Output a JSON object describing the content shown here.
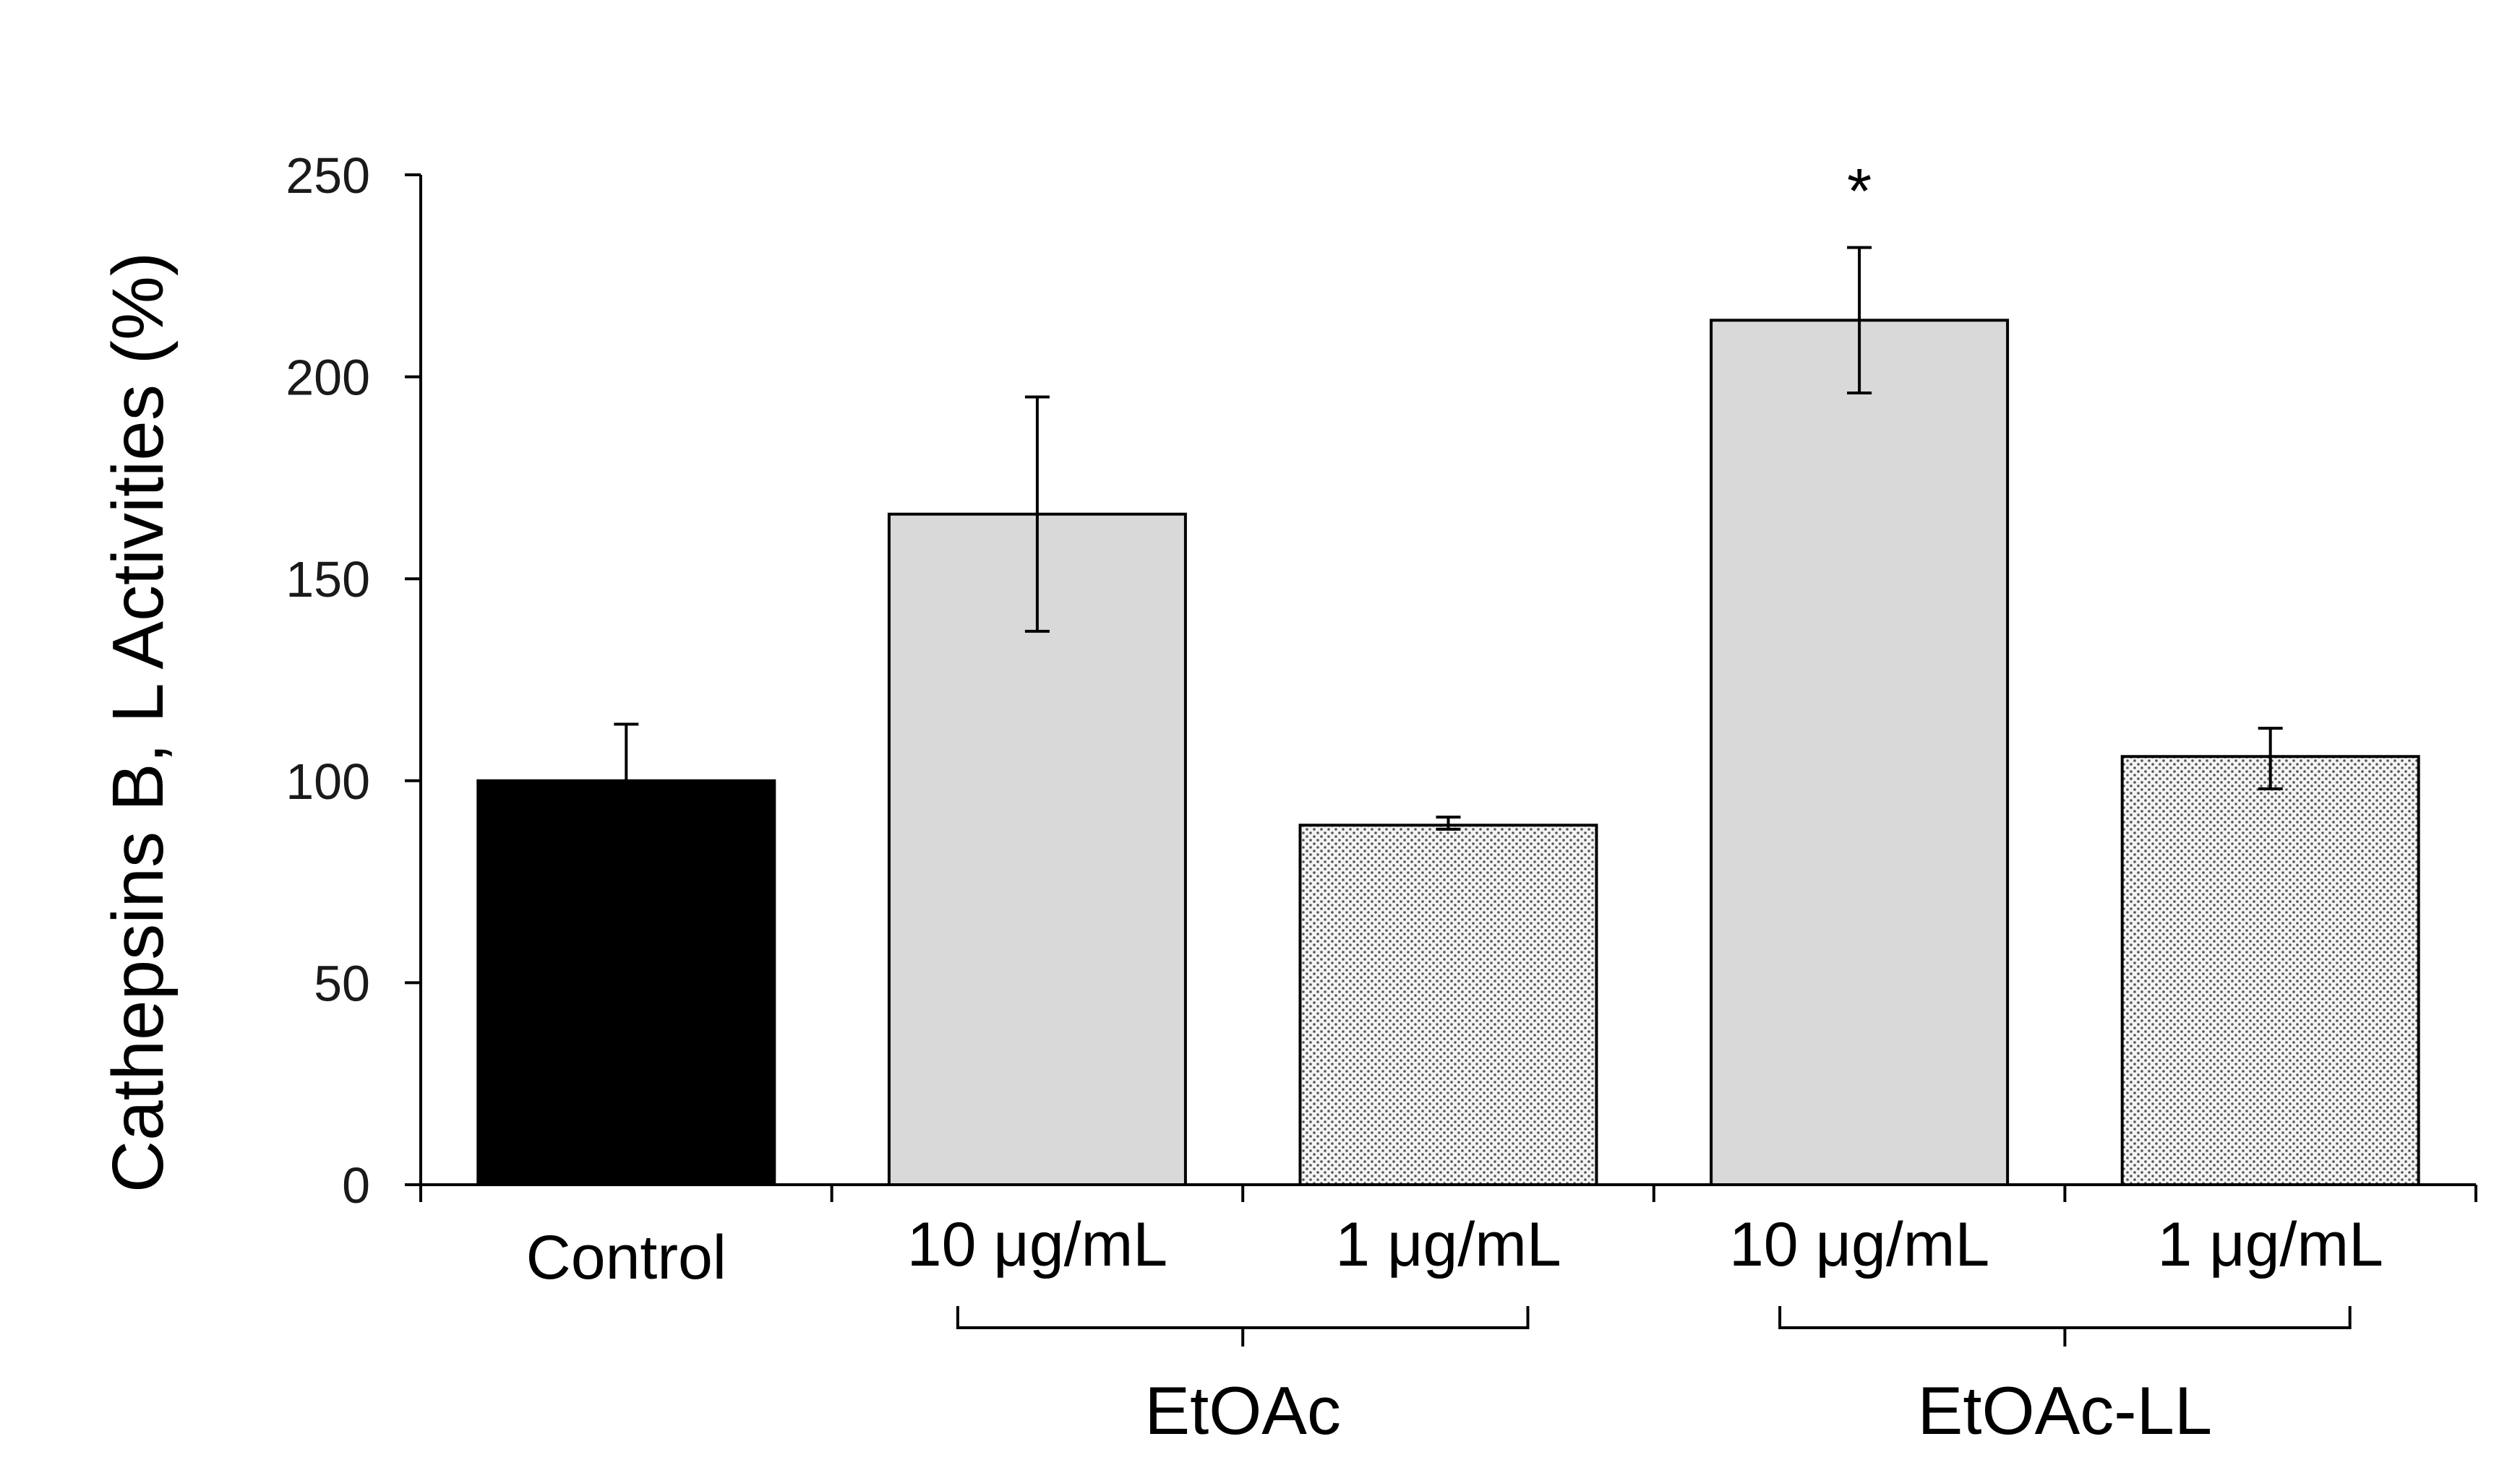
{
  "chart_data": {
    "type": "bar",
    "title": "",
    "xlabel": "",
    "ylabel": "Cathepsins B, L Activities  (%)",
    "ylim": [
      0,
      250
    ],
    "yticks": [
      0,
      50,
      100,
      150,
      200,
      250
    ],
    "grid": false,
    "categories": [
      "Control",
      "10 μg/mL",
      "1 μg/mL",
      "10 μg/mL",
      "1 μg/mL"
    ],
    "values": [
      100,
      166,
      89,
      214,
      106
    ],
    "error_upper": [
      114,
      195,
      91,
      232,
      113
    ],
    "error_lower": [
      100,
      137,
      88,
      196,
      98
    ],
    "fills": [
      "solid-black",
      "light-gray",
      "dotted",
      "light-gray",
      "dotted"
    ],
    "groups": [
      {
        "label": "EtOAc",
        "members": [
          1,
          2
        ]
      },
      {
        "label": "EtOAc-LL",
        "members": [
          3,
          4
        ]
      }
    ],
    "annotations": [
      {
        "bar": 3,
        "text": "*"
      }
    ]
  },
  "colors": {
    "control_fill": "#000000",
    "gray_fill": "#d9d9d9",
    "dotted_bg": "#f4f4f4",
    "dot_color": "#555555",
    "axis": "#000000"
  }
}
